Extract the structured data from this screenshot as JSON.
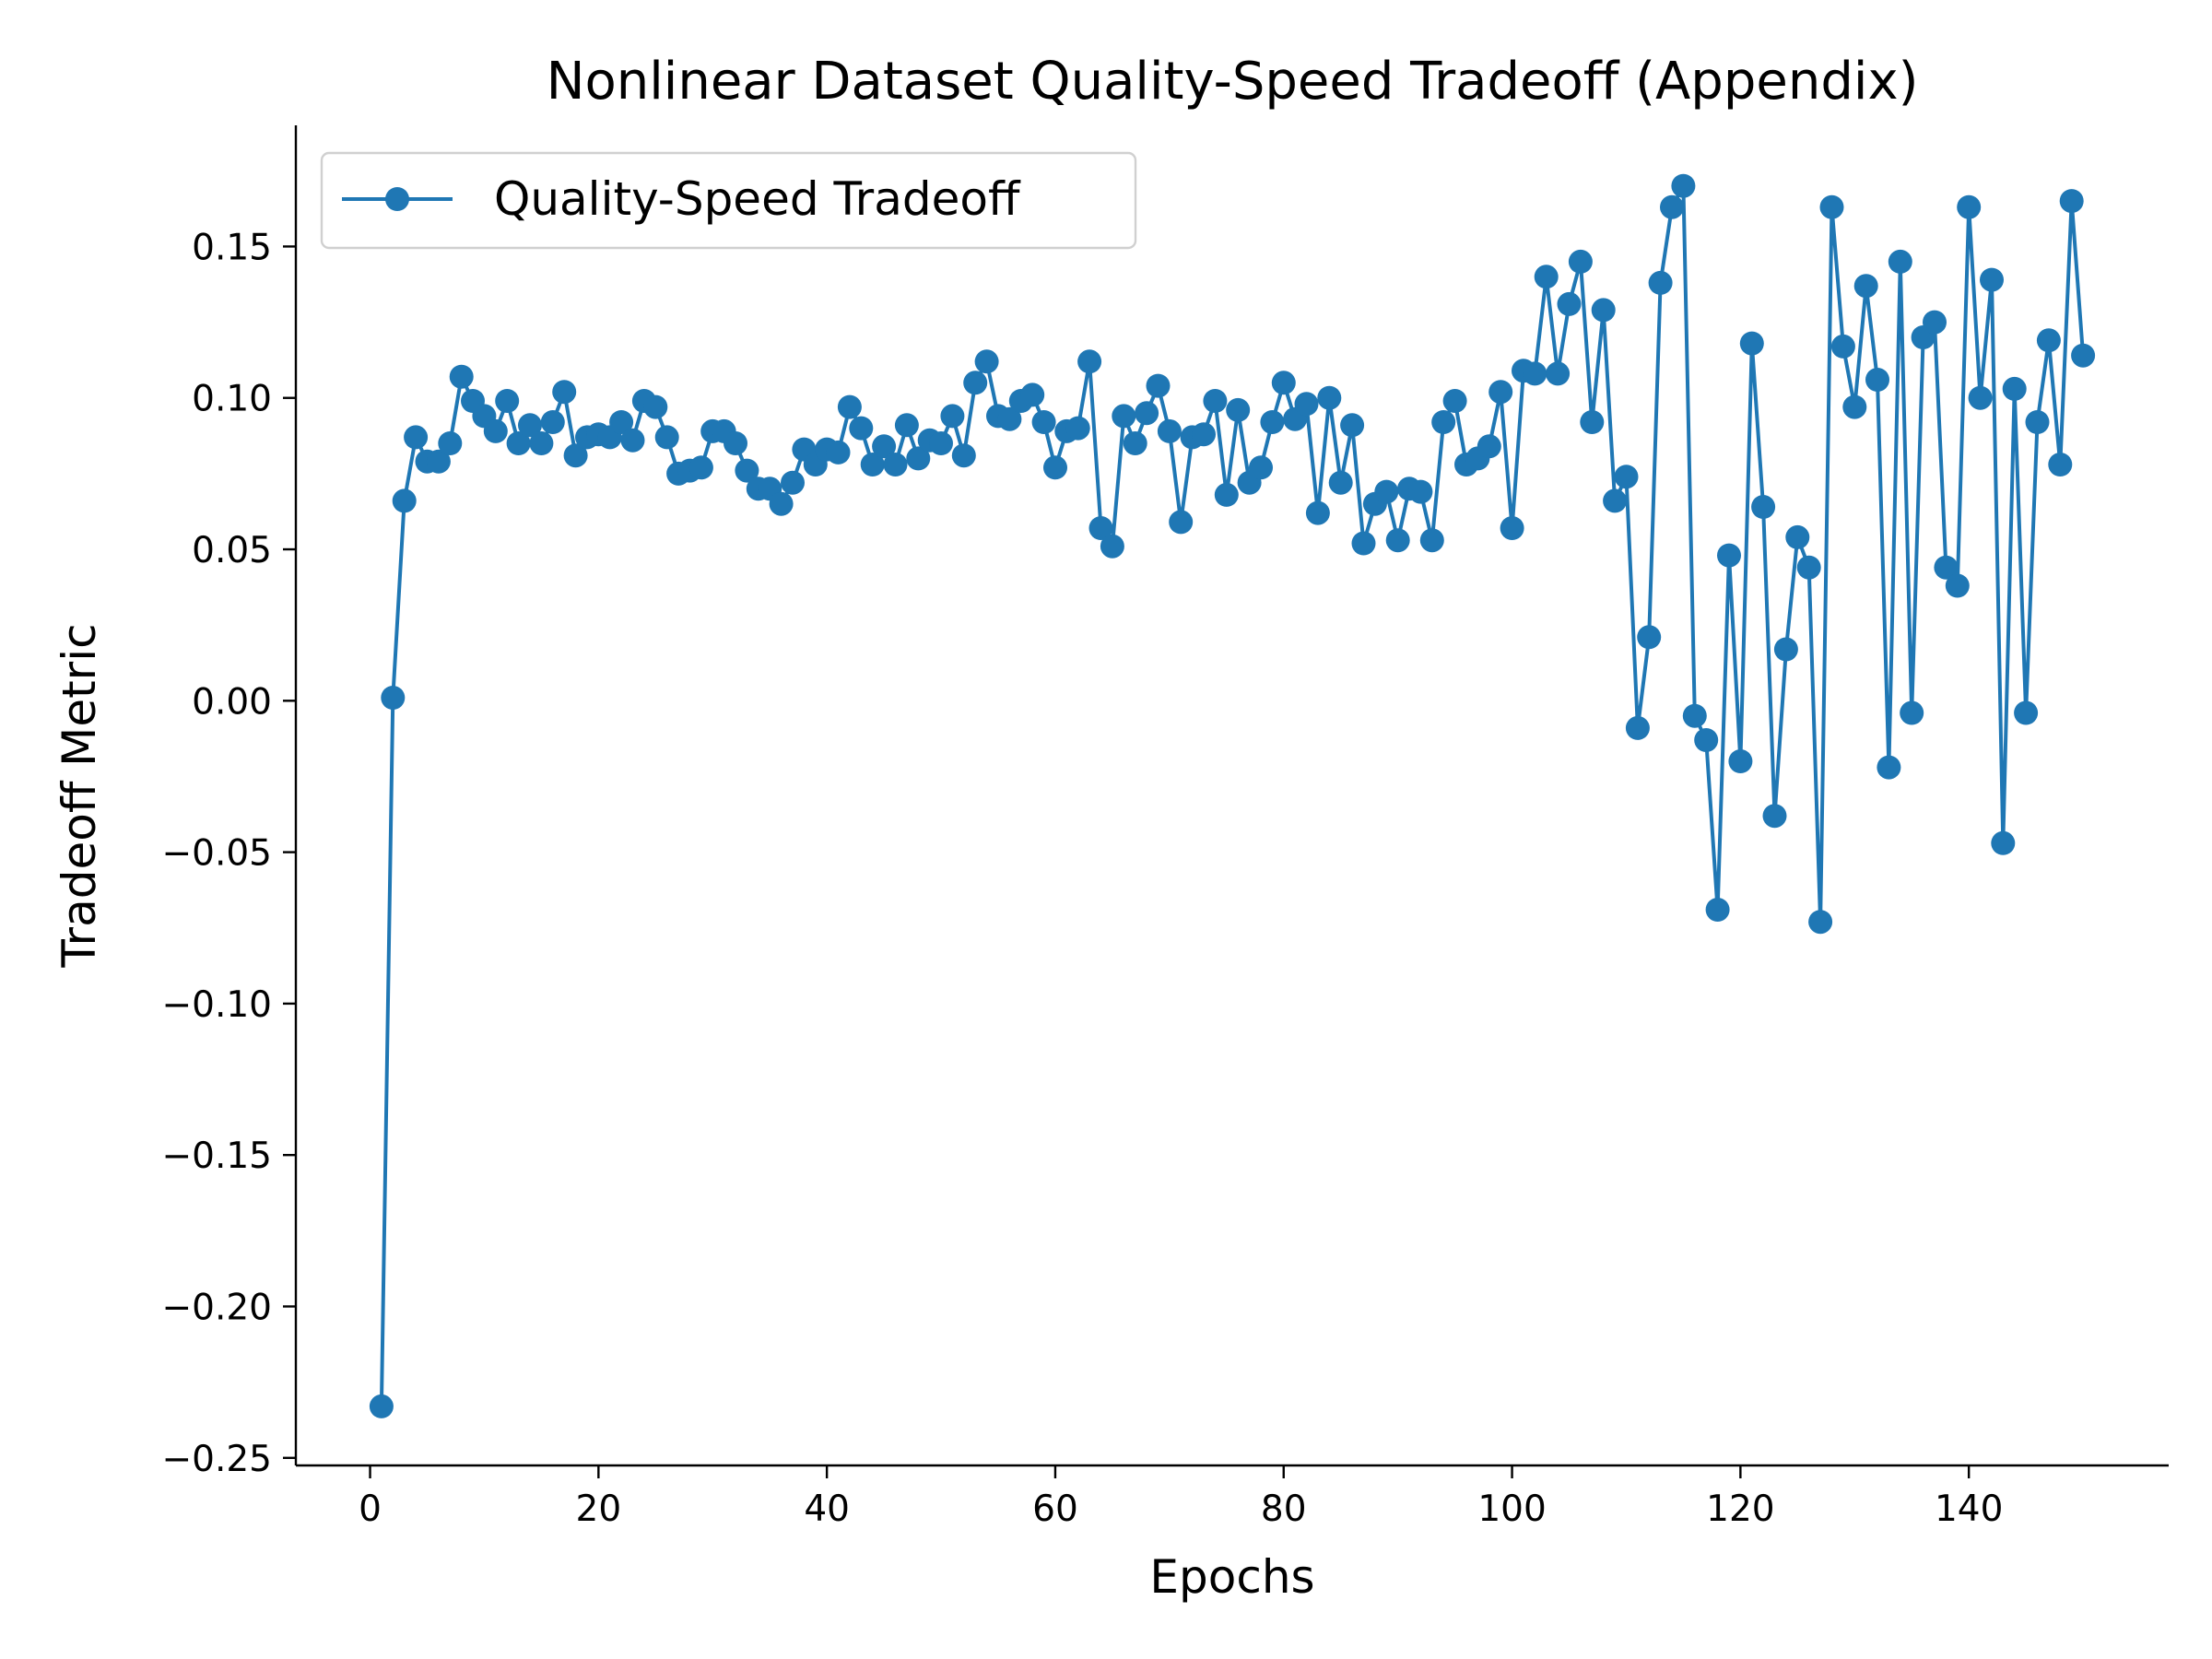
{
  "chart_data": {
    "type": "line",
    "title": "Nonlinear Dataset Quality-Speed Tradeoff (Appendix)",
    "xlabel": "Epochs",
    "ylabel": "Tradeoff Metric",
    "xlim": [
      -6.5,
      157.5
    ],
    "ylim": [
      -0.2525,
      0.19
    ],
    "xticks": [
      0,
      20,
      40,
      60,
      80,
      100,
      120,
      140
    ],
    "xtick_labels": [
      "0",
      "20",
      "40",
      "60",
      "80",
      "100",
      "120",
      "140"
    ],
    "yticks": [
      0.15,
      0.1,
      0.05,
      0.0,
      -0.05,
      -0.1,
      -0.15,
      -0.2,
      -0.25
    ],
    "ytick_labels": [
      "0.15",
      "0.10",
      "0.05",
      "0.00",
      "−0.05",
      "−0.10",
      "−0.15",
      "−0.20",
      "−0.25"
    ],
    "grid": false,
    "legend_position": "upper-left",
    "series": [
      {
        "name": "Quality-Speed Tradeoff",
        "color": "#1f77b4",
        "marker": "circle",
        "x": [
          1,
          2,
          3,
          4,
          5,
          6,
          7,
          8,
          9,
          10,
          11,
          12,
          13,
          14,
          15,
          16,
          17,
          18,
          19,
          20,
          21,
          22,
          23,
          24,
          25,
          26,
          27,
          28,
          29,
          30,
          31,
          32,
          33,
          34,
          35,
          36,
          37,
          38,
          39,
          40,
          41,
          42,
          43,
          44,
          45,
          46,
          47,
          48,
          49,
          50,
          51,
          52,
          53,
          54,
          55,
          56,
          57,
          58,
          59,
          60,
          61,
          62,
          63,
          64,
          65,
          66,
          67,
          68,
          69,
          70,
          71,
          72,
          73,
          74,
          75,
          76,
          77,
          78,
          79,
          80,
          81,
          82,
          83,
          84,
          85,
          86,
          87,
          88,
          89,
          90,
          91,
          92,
          93,
          94,
          95,
          96,
          97,
          98,
          99,
          100,
          101,
          102,
          103,
          104,
          105,
          106,
          107,
          108,
          109,
          110,
          111,
          112,
          113,
          114,
          115,
          116,
          117,
          118,
          119,
          120,
          121,
          122,
          123,
          124,
          125,
          126,
          127,
          128,
          129,
          130,
          131,
          132,
          133,
          134,
          135,
          136,
          137,
          138,
          139,
          140,
          141,
          142,
          143,
          144,
          145,
          146,
          147,
          148,
          149,
          150
        ],
        "y": [
          -0.233,
          0.001,
          0.066,
          0.087,
          0.079,
          0.079,
          0.085,
          0.107,
          0.099,
          0.094,
          0.089,
          0.099,
          0.085,
          0.091,
          0.085,
          0.092,
          0.102,
          0.081,
          0.087,
          0.088,
          0.087,
          0.092,
          0.086,
          0.099,
          0.097,
          0.087,
          0.075,
          0.076,
          0.077,
          0.089,
          0.089,
          0.085,
          0.076,
          0.07,
          0.07,
          0.065,
          0.072,
          0.083,
          0.078,
          0.083,
          0.082,
          0.097,
          0.09,
          0.078,
          0.084,
          0.078,
          0.091,
          0.08,
          0.086,
          0.085,
          0.094,
          0.081,
          0.105,
          0.112,
          0.094,
          0.093,
          0.099,
          0.101,
          0.092,
          0.077,
          0.089,
          0.09,
          0.112,
          0.057,
          0.051,
          0.094,
          0.085,
          0.095,
          0.104,
          0.089,
          0.059,
          0.087,
          0.088,
          0.099,
          0.068,
          0.096,
          0.072,
          0.077,
          0.092,
          0.105,
          0.093,
          0.098,
          0.062,
          0.1,
          0.072,
          0.091,
          0.052,
          0.065,
          0.069,
          0.053,
          0.07,
          0.069,
          0.053,
          0.092,
          0.099,
          0.078,
          0.08,
          0.084,
          0.102,
          0.057,
          0.109,
          0.108,
          0.14,
          0.108,
          0.131,
          0.145,
          0.092,
          0.129,
          0.066,
          0.074,
          -0.009,
          0.021,
          0.138,
          0.163,
          0.17,
          -0.005,
          -0.013,
          -0.069,
          0.048,
          -0.02,
          0.118,
          0.064,
          -0.038,
          0.017,
          0.054,
          0.044,
          -0.073,
          0.163,
          0.117,
          0.097,
          0.137,
          0.106,
          -0.022,
          0.145,
          -0.004,
          0.12,
          0.125,
          0.044,
          0.038,
          0.163,
          0.1,
          0.139,
          -0.047,
          0.103,
          -0.004,
          0.092,
          0.119,
          0.078,
          0.165,
          0.114
        ]
      }
    ]
  }
}
